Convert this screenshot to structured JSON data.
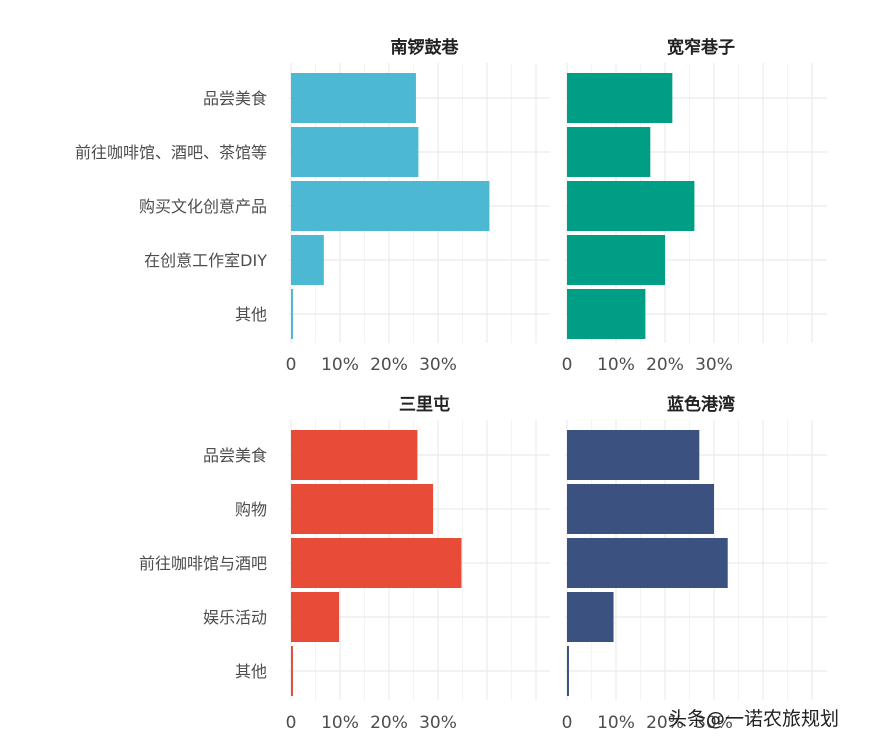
{
  "chart_data": [
    {
      "type": "bar",
      "orientation": "horizontal",
      "title": "南锣鼓巷",
      "categories": [
        "品尝美食",
        "前往咖啡馆、酒吧、茶馆等",
        "购买文化创意产品",
        "在创意工作室DIY",
        "其他"
      ],
      "values": [
        25.5,
        26,
        40.5,
        6.7,
        0.4
      ],
      "color": "#4db8d1",
      "xticks": [
        0,
        10,
        20,
        30
      ],
      "xtick_labels": [
        "0",
        "10%",
        "20%",
        "30%"
      ],
      "xlim": [
        0,
        52
      ],
      "grid": true
    },
    {
      "type": "bar",
      "orientation": "horizontal",
      "title": "宽窄巷子",
      "categories": [
        "品尝美食",
        "前往咖啡馆、酒吧、茶馆等",
        "购买文化创意产品",
        "在创意工作室DIY",
        "其他"
      ],
      "values": [
        21.5,
        17,
        26,
        20,
        16
      ],
      "color": "#009e84",
      "xticks": [
        0,
        10,
        20,
        30
      ],
      "xtick_labels": [
        "0",
        "10%",
        "20%",
        "30%"
      ],
      "xlim": [
        0,
        52
      ],
      "grid": true
    },
    {
      "type": "bar",
      "orientation": "horizontal",
      "title": "三里屯",
      "categories": [
        "品尝美食",
        "购物",
        "前往咖啡馆与酒吧",
        "娱乐活动",
        "其他"
      ],
      "values": [
        25.8,
        29,
        34.8,
        9.8,
        0.4
      ],
      "color": "#e84c39",
      "xticks": [
        0,
        10,
        20,
        30
      ],
      "xtick_labels": [
        "0",
        "10%",
        "20%",
        "30%"
      ],
      "xlim": [
        0,
        52
      ],
      "grid": true
    },
    {
      "type": "bar",
      "orientation": "horizontal",
      "title": "蓝色港湾",
      "categories": [
        "品尝美食",
        "购物",
        "前往咖啡馆与酒吧",
        "娱乐活动",
        "其他"
      ],
      "values": [
        27,
        30,
        32.8,
        9.5,
        0.4
      ],
      "color": "#3b5281",
      "xticks": [
        0,
        10,
        20,
        30
      ],
      "xtick_labels": [
        "0",
        "10%",
        "20%",
        "30%"
      ],
      "xlim": [
        0,
        52
      ],
      "grid": true
    }
  ],
  "watermark": "头条@一诺农旅规划"
}
